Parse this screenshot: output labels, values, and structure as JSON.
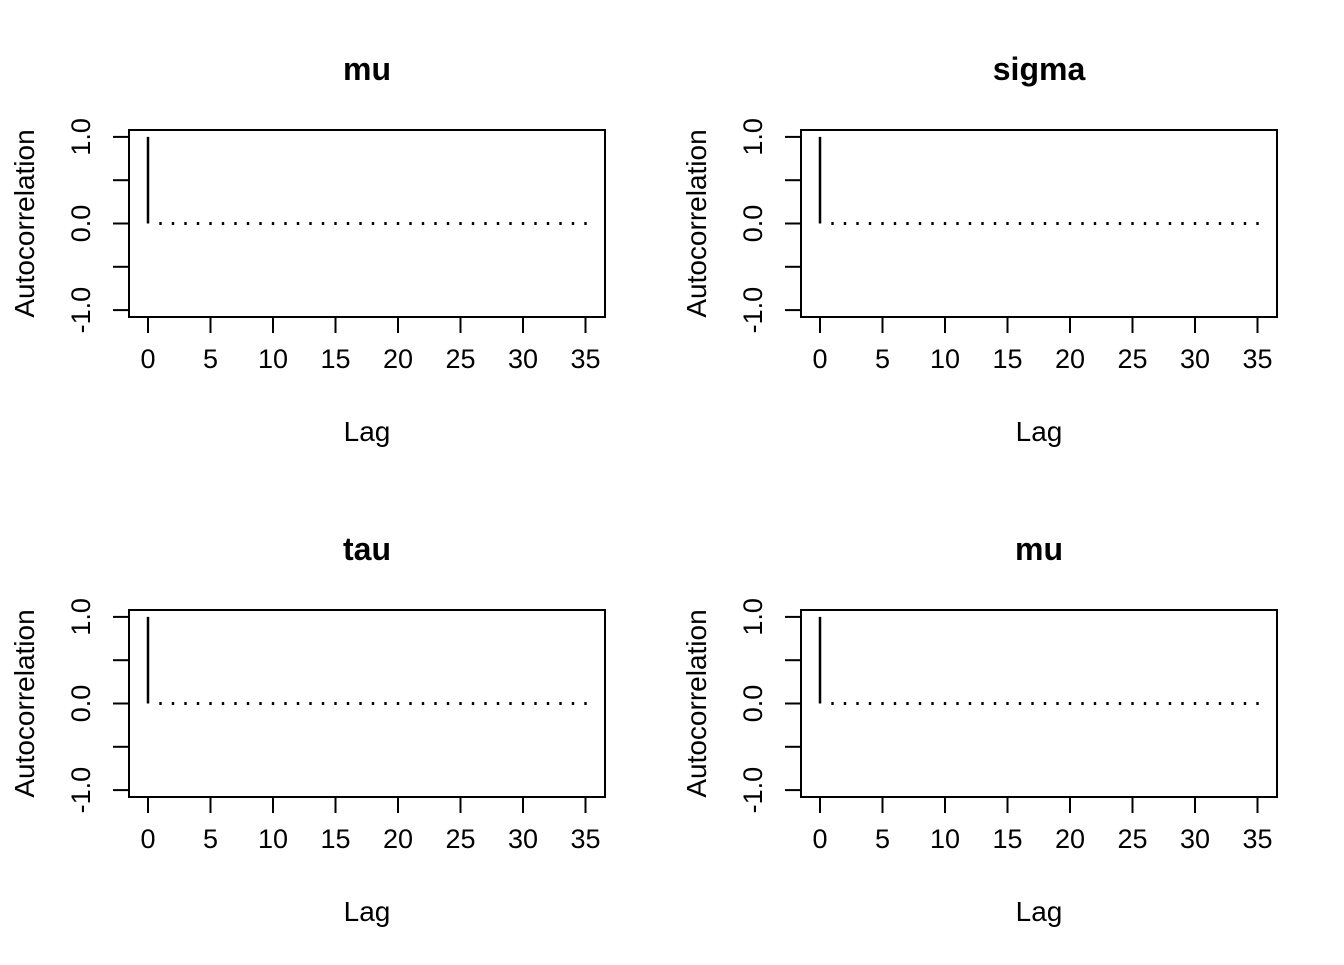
{
  "page": {
    "background": "#ffffff",
    "ink": "#000000"
  },
  "chart_data": [
    {
      "type": "bar",
      "chart_kind": "autocorrelation-function",
      "title": "mu",
      "xlabel": "Lag",
      "ylabel": "Autocorrelation",
      "xlim": [
        0,
        35
      ],
      "ylim": [
        -1.0,
        1.0
      ],
      "x_ticks": [
        0,
        5,
        10,
        15,
        20,
        25,
        30,
        35
      ],
      "y_ticks": [
        -1.0,
        -0.5,
        0.0,
        0.5,
        1.0
      ],
      "y_tick_labels": [
        {
          "value": -1.0,
          "label": "-1.0"
        },
        {
          "value": 0.0,
          "label": "0.0"
        },
        {
          "value": 1.0,
          "label": "1.0"
        }
      ],
      "grid": false,
      "legend": false,
      "x": [
        0,
        1,
        2,
        3,
        4,
        5,
        6,
        7,
        8,
        9,
        10,
        11,
        12,
        13,
        14,
        15,
        16,
        17,
        18,
        19,
        20,
        21,
        22,
        23,
        24,
        25,
        26,
        27,
        28,
        29,
        30,
        31,
        32,
        33,
        34,
        35
      ],
      "values": [
        1.0,
        0.0,
        0.0,
        0.0,
        0.0,
        0.0,
        0.0,
        0.0,
        0.0,
        0.0,
        0.0,
        0.0,
        0.0,
        0.0,
        0.0,
        0.0,
        0.0,
        0.0,
        0.0,
        0.0,
        0.0,
        0.0,
        0.0,
        0.0,
        0.0,
        0.0,
        0.0,
        0.0,
        0.0,
        0.0,
        0.0,
        0.0,
        0.0,
        0.0,
        0.0,
        0.0
      ]
    },
    {
      "type": "bar",
      "chart_kind": "autocorrelation-function",
      "title": "sigma",
      "xlabel": "Lag",
      "ylabel": "Autocorrelation",
      "xlim": [
        0,
        35
      ],
      "ylim": [
        -1.0,
        1.0
      ],
      "x_ticks": [
        0,
        5,
        10,
        15,
        20,
        25,
        30,
        35
      ],
      "y_ticks": [
        -1.0,
        -0.5,
        0.0,
        0.5,
        1.0
      ],
      "y_tick_labels": [
        {
          "value": -1.0,
          "label": "-1.0"
        },
        {
          "value": 0.0,
          "label": "0.0"
        },
        {
          "value": 1.0,
          "label": "1.0"
        }
      ],
      "grid": false,
      "legend": false,
      "x": [
        0,
        1,
        2,
        3,
        4,
        5,
        6,
        7,
        8,
        9,
        10,
        11,
        12,
        13,
        14,
        15,
        16,
        17,
        18,
        19,
        20,
        21,
        22,
        23,
        24,
        25,
        26,
        27,
        28,
        29,
        30,
        31,
        32,
        33,
        34,
        35
      ],
      "values": [
        1.0,
        0.0,
        0.0,
        0.0,
        0.0,
        0.0,
        0.0,
        0.0,
        0.0,
        0.0,
        0.0,
        0.0,
        0.0,
        0.0,
        0.0,
        0.0,
        0.0,
        0.0,
        0.0,
        0.0,
        0.0,
        0.0,
        0.0,
        0.0,
        0.0,
        0.0,
        0.0,
        0.0,
        0.0,
        0.0,
        0.0,
        0.0,
        0.0,
        0.0,
        0.0,
        0.0
      ]
    },
    {
      "type": "bar",
      "chart_kind": "autocorrelation-function",
      "title": "tau",
      "xlabel": "Lag",
      "ylabel": "Autocorrelation",
      "xlim": [
        0,
        35
      ],
      "ylim": [
        -1.0,
        1.0
      ],
      "x_ticks": [
        0,
        5,
        10,
        15,
        20,
        25,
        30,
        35
      ],
      "y_ticks": [
        -1.0,
        -0.5,
        0.0,
        0.5,
        1.0
      ],
      "y_tick_labels": [
        {
          "value": -1.0,
          "label": "-1.0"
        },
        {
          "value": 0.0,
          "label": "0.0"
        },
        {
          "value": 1.0,
          "label": "1.0"
        }
      ],
      "grid": false,
      "legend": false,
      "x": [
        0,
        1,
        2,
        3,
        4,
        5,
        6,
        7,
        8,
        9,
        10,
        11,
        12,
        13,
        14,
        15,
        16,
        17,
        18,
        19,
        20,
        21,
        22,
        23,
        24,
        25,
        26,
        27,
        28,
        29,
        30,
        31,
        32,
        33,
        34,
        35
      ],
      "values": [
        1.0,
        0.0,
        0.0,
        0.0,
        0.0,
        0.0,
        0.0,
        0.0,
        0.0,
        0.0,
        0.0,
        0.0,
        0.0,
        0.0,
        0.0,
        0.0,
        0.0,
        0.0,
        0.0,
        0.0,
        0.0,
        0.0,
        0.0,
        0.0,
        0.0,
        0.0,
        0.0,
        0.0,
        0.0,
        0.0,
        0.0,
        0.0,
        0.0,
        0.0,
        0.0,
        0.0
      ]
    },
    {
      "type": "bar",
      "chart_kind": "autocorrelation-function",
      "title": "mu",
      "xlabel": "Lag",
      "ylabel": "Autocorrelation",
      "xlim": [
        0,
        35
      ],
      "ylim": [
        -1.0,
        1.0
      ],
      "x_ticks": [
        0,
        5,
        10,
        15,
        20,
        25,
        30,
        35
      ],
      "y_ticks": [
        -1.0,
        -0.5,
        0.0,
        0.5,
        1.0
      ],
      "y_tick_labels": [
        {
          "value": -1.0,
          "label": "-1.0"
        },
        {
          "value": 0.0,
          "label": "0.0"
        },
        {
          "value": 1.0,
          "label": "1.0"
        }
      ],
      "grid": false,
      "legend": false,
      "x": [
        0,
        1,
        2,
        3,
        4,
        5,
        6,
        7,
        8,
        9,
        10,
        11,
        12,
        13,
        14,
        15,
        16,
        17,
        18,
        19,
        20,
        21,
        22,
        23,
        24,
        25,
        26,
        27,
        28,
        29,
        30,
        31,
        32,
        33,
        34,
        35
      ],
      "values": [
        1.0,
        0.0,
        0.0,
        0.0,
        0.0,
        0.0,
        0.0,
        0.0,
        0.0,
        0.0,
        0.0,
        0.0,
        0.0,
        0.0,
        0.0,
        0.0,
        0.0,
        0.0,
        0.0,
        0.0,
        0.0,
        0.0,
        0.0,
        0.0,
        0.0,
        0.0,
        0.0,
        0.0,
        0.0,
        0.0,
        0.0,
        0.0,
        0.0,
        0.0,
        0.0,
        0.0
      ]
    }
  ]
}
